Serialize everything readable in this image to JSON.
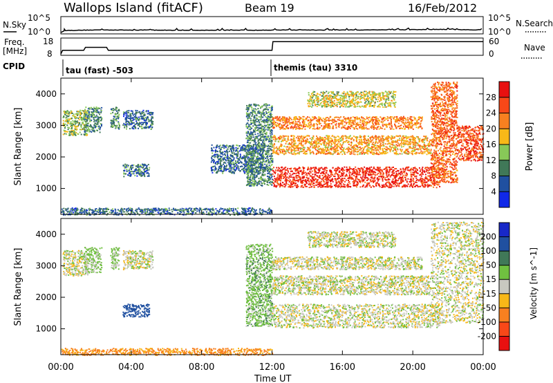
{
  "header": {
    "title": "Wallops Island (fitACF)",
    "beam": "Beam 19",
    "date": "16/Feb/2012"
  },
  "noise_panel": {
    "left_label": "N.Sky",
    "right_label": "N.Search",
    "left_ticks": [
      "10^5",
      "10^0"
    ],
    "right_ticks": [
      "10^5",
      "10^0"
    ]
  },
  "freq_panel": {
    "left_label_line1": "Freq.",
    "left_label_line2": "[MHz]",
    "right_label": "Nave",
    "left_ticks": [
      "18",
      "8"
    ],
    "right_ticks": [
      "60",
      "0"
    ]
  },
  "cpid_panel": {
    "label": "CPID",
    "segments": [
      {
        "text": "tau (fast) -503",
        "start_hour": 0
      },
      {
        "text": "themis (tau) 3310",
        "start_hour": 12
      }
    ]
  },
  "power_panel": {
    "ylabel": "Slant Range [km]",
    "colorbar_label": "Power [dB]",
    "colorbar_ticks": [
      "28",
      "24",
      "20",
      "16",
      "12",
      "8",
      "4"
    ],
    "colorbar_colors": [
      "#e81010",
      "#f84818",
      "#f88020",
      "#f8b818",
      "#88c858",
      "#407858",
      "#2050a0",
      "#1028e8"
    ]
  },
  "velocity_panel": {
    "ylabel": "Slant Range [km]",
    "colorbar_label": "Velocity [m s^-1]",
    "colorbar_ticks": [
      "200",
      "100",
      "50",
      "15",
      "-15",
      "-50",
      "-100",
      "-200"
    ],
    "colorbar_colors": [
      "#1828c8",
      "#2050a0",
      "#407858",
      "#70c040",
      "#c8c8c0",
      "#f8b818",
      "#f88020",
      "#f84818",
      "#e81010"
    ]
  },
  "x_axis": {
    "label": "Time UT",
    "tick_labels": [
      "00:00",
      "04:00",
      "08:00",
      "12:00",
      "16:00",
      "20:00",
      "00:00"
    ]
  },
  "chart_data": [
    {
      "type": "line",
      "name": "noise",
      "x_hours": [
        0,
        0.2,
        1,
        2,
        3,
        4,
        5,
        6,
        7,
        8,
        9,
        10,
        11,
        12,
        13,
        14,
        15,
        16,
        17,
        18,
        19,
        20,
        21,
        22,
        23,
        24
      ],
      "n_sky_log10": [
        0,
        0.6,
        0.7,
        0.8,
        0.8,
        0.75,
        0.8,
        0.7,
        0.7,
        0.7,
        0.7,
        0.75,
        0.7,
        0.75,
        0.8,
        0.8,
        0.75,
        0.8,
        0.8,
        0.85,
        0.85,
        0.9,
        0.95,
        1.0,
        0.85,
        0.8
      ],
      "ylim_log10": [
        0,
        5
      ]
    },
    {
      "type": "line",
      "name": "frequency",
      "x_hours": [
        0,
        0.1,
        1.3,
        1.4,
        2.6,
        2.7,
        12,
        12.05,
        24
      ],
      "freq_mhz": [
        8,
        10.5,
        10.5,
        12.5,
        12.5,
        10.5,
        10.5,
        16.5,
        16.5
      ],
      "ylim": [
        8,
        18
      ],
      "nave_range": [
        0,
        60
      ]
    },
    {
      "type": "heatmap",
      "name": "power",
      "x_range_hours": [
        0,
        24
      ],
      "y_range_km": [
        180,
        4500
      ],
      "y_ticks_km": [
        1000,
        2000,
        3000,
        4000
      ],
      "x_ticks_hours": [
        0,
        4,
        8,
        12,
        16,
        20,
        24
      ],
      "regions": [
        {
          "t": [
            0.1,
            1.5
          ],
          "r": [
            2700,
            3500
          ],
          "level_db": 12
        },
        {
          "t": [
            1.3,
            2.3
          ],
          "r": [
            2800,
            3600
          ],
          "level_db": 8
        },
        {
          "t": [
            2.8,
            3.3
          ],
          "r": [
            2900,
            3600
          ],
          "level_db": 8
        },
        {
          "t": [
            3.5,
            5.2
          ],
          "r": [
            2900,
            3500
          ],
          "level_db": 6
        },
        {
          "t": [
            3.5,
            5.0
          ],
          "r": [
            1400,
            1800
          ],
          "level_db": 6
        },
        {
          "t": [
            8.5,
            11.5
          ],
          "r": [
            1500,
            2400
          ],
          "level_db": 6
        },
        {
          "t": [
            10.5,
            12.0
          ],
          "r": [
            1100,
            3700
          ],
          "level_db": 8
        },
        {
          "t": [
            12.0,
            21.5
          ],
          "r": [
            1050,
            1700
          ],
          "level_db": 26
        },
        {
          "t": [
            12.0,
            21.0
          ],
          "r": [
            2100,
            2700
          ],
          "level_db": 18
        },
        {
          "t": [
            12.0,
            20.5
          ],
          "r": [
            2900,
            3300
          ],
          "level_db": 20
        },
        {
          "t": [
            14.0,
            19.0
          ],
          "r": [
            3600,
            4100
          ],
          "level_db": 14
        },
        {
          "t": [
            21.0,
            22.5
          ],
          "r": [
            1200,
            4400
          ],
          "level_db": 22
        },
        {
          "t": [
            22.5,
            24.0
          ],
          "r": [
            1900,
            3000
          ],
          "level_db": 24
        },
        {
          "t": [
            0.0,
            12.0
          ],
          "r": [
            180,
            400
          ],
          "level_db": 6
        }
      ]
    },
    {
      "type": "heatmap",
      "name": "velocity",
      "x_range_hours": [
        0,
        24
      ],
      "y_range_km": [
        180,
        4500
      ],
      "y_ticks_km": [
        1000,
        2000,
        3000,
        4000
      ],
      "x_ticks_hours": [
        0,
        4,
        8,
        12,
        16,
        20,
        24
      ],
      "regions": [
        {
          "t": [
            0.1,
            1.5
          ],
          "r": [
            2700,
            3500
          ],
          "v_ms": 0
        },
        {
          "t": [
            1.3,
            2.3
          ],
          "r": [
            2800,
            3600
          ],
          "v_ms": 20
        },
        {
          "t": [
            2.8,
            3.3
          ],
          "r": [
            2900,
            3600
          ],
          "v_ms": 20
        },
        {
          "t": [
            3.5,
            5.2
          ],
          "r": [
            2900,
            3500
          ],
          "v_ms": 0
        },
        {
          "t": [
            3.5,
            5.0
          ],
          "r": [
            1400,
            1800
          ],
          "v_ms": 150
        },
        {
          "t": [
            10.5,
            12.0
          ],
          "r": [
            1100,
            3700
          ],
          "v_ms": 30
        },
        {
          "t": [
            12.0,
            21.5
          ],
          "r": [
            1050,
            1800
          ],
          "v_ms": 0
        },
        {
          "t": [
            12.0,
            21.0
          ],
          "r": [
            2100,
            2700
          ],
          "v_ms": 0
        },
        {
          "t": [
            12.0,
            20.5
          ],
          "r": [
            2900,
            3300
          ],
          "v_ms": 0
        },
        {
          "t": [
            14.0,
            19.0
          ],
          "r": [
            3600,
            4100
          ],
          "v_ms": 0
        },
        {
          "t": [
            21.0,
            24.0
          ],
          "r": [
            1200,
            4400
          ],
          "v_ms": 0
        },
        {
          "t": [
            0.0,
            12.0
          ],
          "r": [
            180,
            400
          ],
          "v_ms": -60
        }
      ]
    }
  ]
}
